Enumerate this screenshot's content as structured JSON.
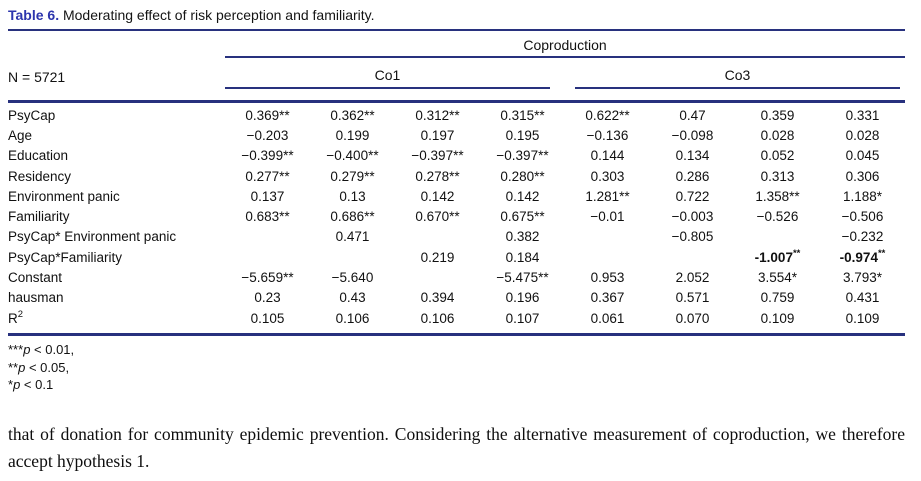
{
  "caption": {
    "label": "Table 6.",
    "text": "Moderating effect of risk perception and familiarity."
  },
  "header": {
    "group": "Coproduction",
    "subgroups": [
      "Co1",
      "Co3"
    ],
    "n_label": "N = 5721"
  },
  "table": {
    "rows": [
      {
        "label": "PsyCap",
        "cells": [
          "0.369**",
          "0.362**",
          "0.312**",
          "0.315**",
          "0.622**",
          "0.47",
          "0.359",
          "0.331"
        ]
      },
      {
        "label": "Age",
        "cells": [
          "−0.203",
          "0.199",
          "0.197",
          "0.195",
          "−0.136",
          "−0.098",
          "0.028",
          "0.028"
        ]
      },
      {
        "label": "Education",
        "cells": [
          "−0.399**",
          "−0.400**",
          "−0.397**",
          "−0.397**",
          "0.144",
          "0.134",
          "0.052",
          "0.045"
        ]
      },
      {
        "label": "Residency",
        "cells": [
          "0.277**",
          "0.279**",
          "0.278**",
          "0.280**",
          "0.303",
          "0.286",
          "0.313",
          "0.306"
        ]
      },
      {
        "label": "Environment panic",
        "cells": [
          "0.137",
          "0.13",
          "0.142",
          "0.142",
          "1.281**",
          "0.722",
          "1.358**",
          "1.188*"
        ]
      },
      {
        "label": "Familiarity",
        "cells": [
          "0.683**",
          "0.686**",
          "0.670**",
          "0.675**",
          "−0.01",
          "−0.003",
          "−0.526",
          "−0.506"
        ]
      },
      {
        "label": "PsyCap* Environment panic",
        "cells": [
          "",
          "0.471",
          "",
          "0.382",
          "",
          "−0.805",
          "",
          "−0.232"
        ]
      },
      {
        "label": "PsyCap*Familiarity",
        "cells": [
          "",
          "",
          "0.219",
          "0.184",
          "",
          "",
          {
            "text": "-1.007",
            "sup": "**",
            "bold": true
          },
          {
            "text": "-0.974",
            "sup": "**",
            "bold": true
          }
        ]
      },
      {
        "label": "Constant",
        "cells": [
          "−5.659**",
          "−5.640",
          "",
          "−5.475**",
          "0.953",
          "2.052",
          "3.554*",
          "3.793*"
        ]
      },
      {
        "label": "hausman",
        "cells": [
          "0.23",
          "0.43",
          "0.394",
          "0.196",
          "0.367",
          "0.571",
          "0.759",
          "0.431"
        ]
      },
      {
        "label": {
          "text": "R",
          "sup": "2"
        },
        "cells": [
          "0.105",
          "0.106",
          "0.106",
          "0.107",
          "0.061",
          "0.070",
          "0.109",
          "0.109"
        ]
      }
    ]
  },
  "footnotes": [
    {
      "stars": "***",
      "var": "p",
      "cond": " < 0.01,"
    },
    {
      "stars": "**",
      "var": "p",
      "cond": " < 0.05,"
    },
    {
      "stars": "*",
      "var": "p",
      "cond": " < 0.1"
    }
  ],
  "paragraph": "that of donation for community epidemic prevention. Considering the alternative measurement of coproduction, we therefore accept hypothesis 1.",
  "colors": {
    "rule": "#28317e",
    "caption_label": "#2c35ad"
  }
}
